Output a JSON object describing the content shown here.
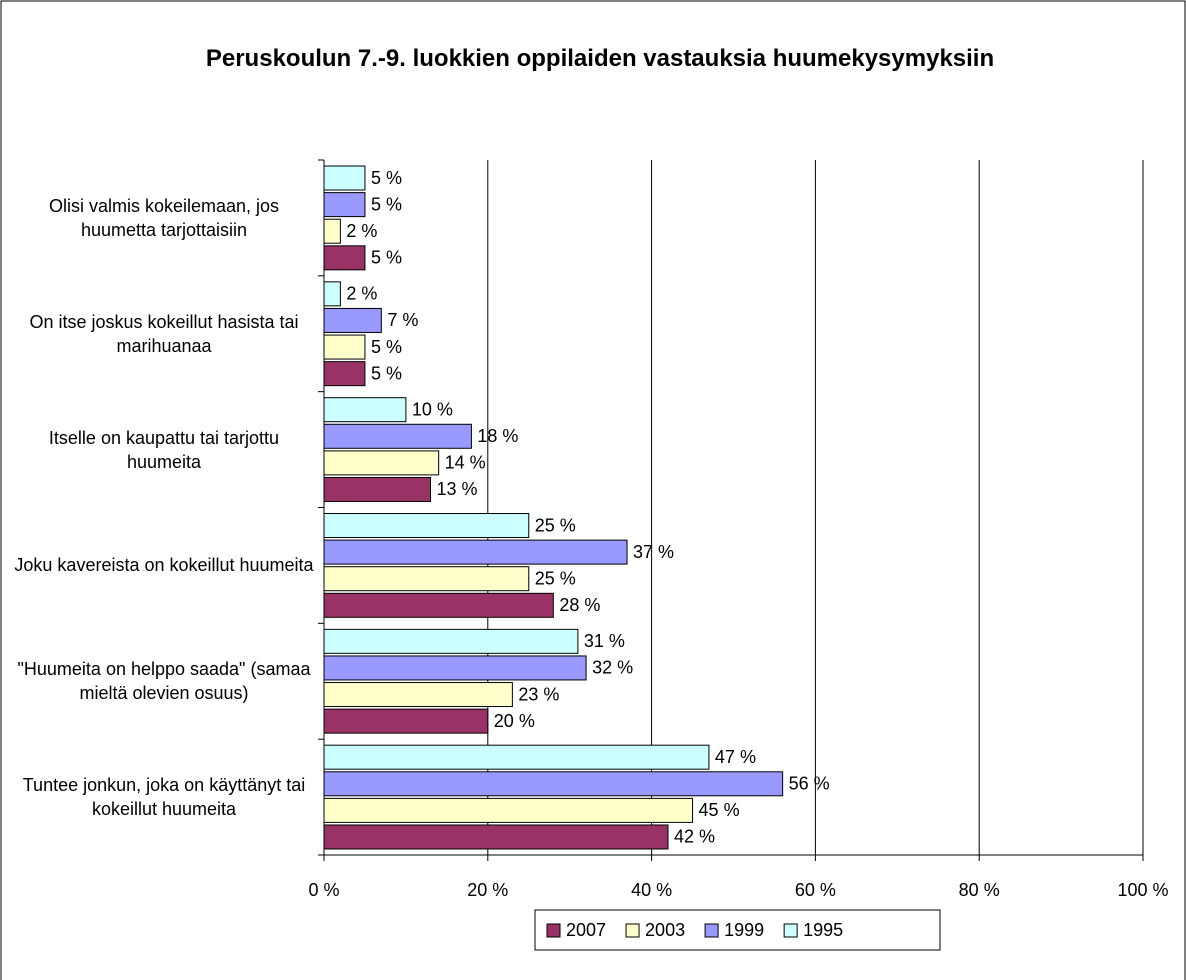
{
  "chart_data": {
    "type": "bar",
    "orientation": "horizontal",
    "title": "Peruskoulun 7.-9. luokkien oppilaiden vastauksia huumekysymyksiin",
    "categories": [
      "Olisi valmis kokeilemaan, jos huumetta tarjottaisiin",
      "On itse joskus kokeillut hasista tai marihuanaa",
      "Itselle on kaupattu tai tarjottu huumeita",
      "Joku kavereista on kokeillut huumeita",
      "\"Huumeita on helppo saada\" (samaa mieltä olevien osuus)",
      "Tuntee jonkun, joka on käyttänyt tai kokeillut huumeita"
    ],
    "series": [
      {
        "name": "2007",
        "color": "#993366",
        "values": [
          5,
          5,
          13,
          28,
          20,
          42
        ],
        "value_labels": [
          "5 %",
          "5 %",
          "13 %",
          "28 %",
          "20 %",
          "42 %"
        ]
      },
      {
        "name": "2003",
        "color": "#FFFFCC",
        "values": [
          2,
          5,
          14,
          25,
          23,
          45
        ],
        "value_labels": [
          "2 %",
          "5 %",
          "14 %",
          "25 %",
          "23 %",
          "45 %"
        ]
      },
      {
        "name": "1999",
        "color": "#9999FF",
        "values": [
          5,
          7,
          18,
          37,
          32,
          56
        ],
        "value_labels": [
          "5 %",
          "7 %",
          "18 %",
          "37 %",
          "32 %",
          "56 %"
        ]
      },
      {
        "name": "1995",
        "color": "#CCFFFF",
        "values": [
          5,
          2,
          10,
          25,
          31,
          47
        ],
        "value_labels": [
          "5 %",
          "2 %",
          "10 %",
          "25 %",
          "31 %",
          "47 %"
        ]
      }
    ],
    "xlim": [
      0,
      100
    ],
    "xticks": [
      {
        "value": 0,
        "label": "0 %"
      },
      {
        "value": 20,
        "label": "20 %"
      },
      {
        "value": 40,
        "label": "40 %"
      },
      {
        "value": 60,
        "label": "60 %"
      },
      {
        "value": 80,
        "label": "80 %"
      },
      {
        "value": 100,
        "label": "100 %"
      }
    ],
    "grid": true,
    "legend": "bottom"
  }
}
